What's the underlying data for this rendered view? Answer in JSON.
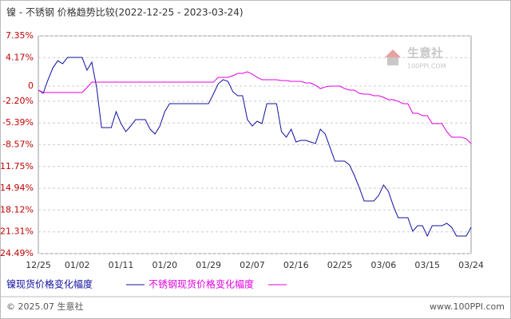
{
  "chart_data": {
    "type": "line",
    "title": "镍 - 不锈钢 价格趋势比较(2022-12-25 - 2023-03-24)",
    "categories": [
      "12/25",
      null,
      null,
      null,
      null,
      null,
      null,
      null,
      "01/02",
      null,
      null,
      null,
      null,
      null,
      null,
      null,
      null,
      "01/11",
      null,
      null,
      null,
      null,
      null,
      null,
      null,
      null,
      "01/20",
      null,
      null,
      null,
      null,
      null,
      null,
      null,
      null,
      "01/29",
      null,
      null,
      null,
      null,
      null,
      null,
      null,
      null,
      "02/07",
      null,
      null,
      null,
      null,
      null,
      null,
      null,
      null,
      "02/16",
      null,
      null,
      null,
      null,
      null,
      null,
      null,
      null,
      "02/25",
      null,
      null,
      null,
      null,
      null,
      null,
      null,
      null,
      "03/06",
      null,
      null,
      null,
      null,
      null,
      null,
      null,
      null,
      "03/15",
      null,
      null,
      null,
      null,
      null,
      null,
      null,
      null,
      "03/24"
    ],
    "series": [
      {
        "name": "镍现货价格变化幅度",
        "color": "#1010a0",
        "values": [
          -0.58,
          -1.05,
          0.94,
          2.68,
          3.73,
          3.27,
          4.2,
          4.2,
          4.2,
          4.2,
          2.33,
          3.5,
          -0.23,
          -6.06,
          -6.06,
          -6.06,
          -3.73,
          -5.48,
          -6.65,
          -5.83,
          -4.9,
          -4.9,
          -4.9,
          -6.3,
          -7.0,
          -5.83,
          -3.73,
          -2.56,
          -2.56,
          -2.56,
          -2.56,
          -2.56,
          -2.56,
          -2.56,
          -2.56,
          -2.56,
          -1.16,
          0.35,
          0.94,
          0.7,
          -0.81,
          -1.4,
          -1.4,
          -4.9,
          -5.83,
          -5.13,
          -5.48,
          -2.56,
          -2.56,
          -2.56,
          -6.65,
          -7.46,
          -6.3,
          -8.16,
          -7.93,
          -7.93,
          -8.16,
          -8.4,
          -6.3,
          -7.0,
          -8.98,
          -10.96,
          -10.96,
          -10.96,
          -11.54,
          -13.06,
          -14.81,
          -16.79,
          -16.79,
          -16.79,
          -15.98,
          -14.46,
          -15.39,
          -17.49,
          -19.24,
          -19.24,
          -19.24,
          -21.22,
          -20.41,
          -20.41,
          -21.92,
          -20.41,
          -20.41,
          -20.41,
          -20.06,
          -20.64,
          -21.92,
          -21.92,
          -21.92,
          -20.64
        ]
      },
      {
        "name": "不锈钢现货价格变化幅度",
        "color": "#e000e0",
        "values": [
          -0.58,
          -0.93,
          -0.93,
          -0.93,
          -0.93,
          -0.93,
          -0.93,
          -0.93,
          -0.93,
          -0.93,
          -0.23,
          0.58,
          0.58,
          0.58,
          0.58,
          0.58,
          0.58,
          0.58,
          0.58,
          0.58,
          0.58,
          0.58,
          0.58,
          0.58,
          0.58,
          0.58,
          0.58,
          0.58,
          0.58,
          0.58,
          0.58,
          0.58,
          0.58,
          0.58,
          0.58,
          0.58,
          0.58,
          1.29,
          1.29,
          1.29,
          1.52,
          1.87,
          1.87,
          2.1,
          1.75,
          1.29,
          0.94,
          0.94,
          0.94,
          0.94,
          0.82,
          0.82,
          0.7,
          0.7,
          0.7,
          0.47,
          0.47,
          0.12,
          -0.35,
          -0.12,
          0.0,
          0.0,
          0.0,
          -0.35,
          -0.58,
          -0.58,
          -1.05,
          -1.16,
          -1.16,
          -1.4,
          -1.4,
          -1.63,
          -1.98,
          -1.98,
          -2.21,
          -2.56,
          -2.56,
          -3.96,
          -3.96,
          -4.31,
          -4.31,
          -5.48,
          -5.48,
          -5.48,
          -6.65,
          -7.46,
          -7.46,
          -7.46,
          -7.7,
          -8.4
        ]
      }
    ],
    "ylim": [
      -24.49,
      7.35
    ],
    "yticks": [
      {
        "value": 7.35,
        "label": "7.35%"
      },
      {
        "value": 4.17,
        "label": "4.17%"
      },
      0,
      {
        "value": -2.2,
        "label": "-2.20%"
      },
      {
        "value": -5.39,
        "label": "-5.39%"
      },
      {
        "value": -8.57,
        "label": "-8.57%"
      },
      {
        "value": -11.75,
        "label": "-11.75%"
      },
      {
        "value": -14.94,
        "label": "-14.94%"
      },
      {
        "value": -18.12,
        "label": "-18.12%"
      },
      {
        "value": -21.31,
        "label": "-21.31%"
      },
      {
        "value": -24.49,
        "label": "-24.49%"
      }
    ],
    "grid": true
  },
  "watermark": {
    "name": "生意社",
    "site": "100PPI.COM"
  },
  "footer": {
    "left": "© 2025.07 生意社",
    "right": "www.100PPI.com"
  }
}
